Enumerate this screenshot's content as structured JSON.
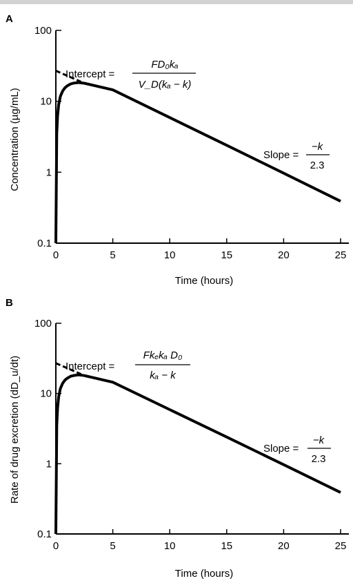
{
  "chart_data": [
    {
      "panel": "A",
      "type": "line",
      "xlabel": "Time (hours)",
      "ylabel": "Concentration (µg/mL)",
      "xlim": [
        0,
        25
      ],
      "ylim": [
        0.1,
        100
      ],
      "yscale": "log",
      "xticks": [
        "0",
        "5",
        "10",
        "15",
        "20",
        "25"
      ],
      "yticks": [
        "0.1",
        "1",
        "10",
        "100"
      ],
      "grid": false,
      "series": [
        {
          "style": "solid",
          "x": [
            0.0,
            0.08,
            0.15,
            0.25,
            0.4,
            0.6,
            0.8,
            1.0,
            1.3,
            1.6,
            2.0,
            2.5,
            5,
            10,
            15,
            20,
            25
          ],
          "y": [
            0.1,
            3.5,
            6.2,
            9.0,
            11.8,
            14.0,
            15.5,
            16.5,
            17.6,
            18.1,
            18.4,
            18.0,
            14.5,
            5.9,
            2.4,
            0.97,
            0.39
          ]
        },
        {
          "style": "dashed",
          "x": [
            0,
            2.5
          ],
          "y": [
            27,
            18.0
          ]
        }
      ],
      "annotations": {
        "intercept_label": "Intercept =",
        "intercept_num": "FD₀kₐ",
        "intercept_den": "V_D(kₐ − k)",
        "slope_label": "Slope =",
        "slope_num": "−k",
        "slope_den": "2.3"
      }
    },
    {
      "panel": "B",
      "type": "line",
      "xlabel": "Time (hours)",
      "ylabel": "Rate of drug excretion (dD_u/dt)",
      "xlim": [
        0,
        25
      ],
      "ylim": [
        0.1,
        100
      ],
      "yscale": "log",
      "xticks": [
        "0",
        "5",
        "10",
        "15",
        "20",
        "25"
      ],
      "yticks": [
        "0.1",
        "1",
        "10",
        "100"
      ],
      "grid": false,
      "series": [
        {
          "style": "solid",
          "x": [
            0.0,
            0.08,
            0.15,
            0.25,
            0.4,
            0.6,
            0.8,
            1.0,
            1.3,
            1.6,
            2.0,
            2.5,
            5,
            10,
            15,
            20,
            25
          ],
          "y": [
            0.1,
            3.5,
            6.2,
            9.0,
            11.8,
            14.0,
            15.5,
            16.5,
            17.6,
            18.1,
            18.4,
            18.0,
            14.5,
            5.9,
            2.4,
            0.97,
            0.39
          ]
        },
        {
          "style": "dashed",
          "x": [
            0,
            2.5
          ],
          "y": [
            27,
            18.0
          ]
        }
      ],
      "annotations": {
        "intercept_label": "Intercept =",
        "intercept_num": "Fkₑkₐ D₀",
        "intercept_den": "kₐ − k",
        "slope_label": "Slope =",
        "slope_num": "−k",
        "slope_den": "2.3"
      }
    }
  ],
  "colors": {
    "line": "#000000",
    "background": "#ffffff"
  }
}
